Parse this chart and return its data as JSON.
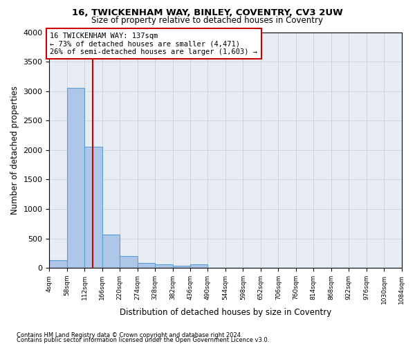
{
  "title1": "16, TWICKENHAM WAY, BINLEY, COVENTRY, CV3 2UW",
  "title2": "Size of property relative to detached houses in Coventry",
  "xlabel": "Distribution of detached houses by size in Coventry",
  "ylabel": "Number of detached properties",
  "footnote1": "Contains HM Land Registry data © Crown copyright and database right 2024.",
  "footnote2": "Contains public sector information licensed under the Open Government Licence v3.0.",
  "annotation_line1": "16 TWICKENHAM WAY: 137sqm",
  "annotation_line2": "← 73% of detached houses are smaller (4,471)",
  "annotation_line3": "26% of semi-detached houses are larger (1,603) →",
  "property_size": 137,
  "bin_edges": [
    4,
    58,
    112,
    166,
    220,
    274,
    328,
    382,
    436,
    490,
    544,
    598,
    652,
    706,
    760,
    814,
    868,
    922,
    976,
    1030,
    1084
  ],
  "bar_heights": [
    130,
    3060,
    2060,
    565,
    200,
    80,
    55,
    40,
    55,
    0,
    0,
    0,
    0,
    0,
    0,
    0,
    0,
    0,
    0,
    0
  ],
  "bar_color": "#aec6e8",
  "bar_edge_color": "#5a9fd4",
  "vline_color": "#cc0000",
  "grid_color": "#c8d0dc",
  "background_color": "#e8edf4",
  "annotation_box_color": "#cc0000",
  "ylim": [
    0,
    4000
  ],
  "yticks": [
    0,
    500,
    1000,
    1500,
    2000,
    2500,
    3000,
    3500,
    4000
  ]
}
